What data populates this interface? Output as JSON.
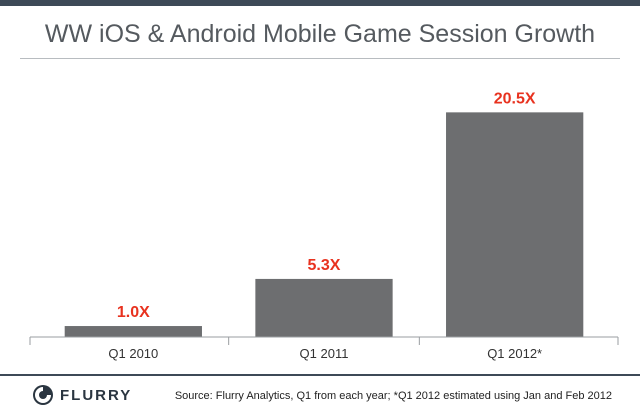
{
  "header": {
    "title": "WW iOS & Android Mobile Game Session Growth"
  },
  "chart_data": {
    "type": "bar",
    "title": "WW iOS & Android Mobile Game Session Growth",
    "categories": [
      "Q1 2010",
      "Q1 2011",
      "Q1 2012*"
    ],
    "values": [
      1.0,
      5.3,
      20.5
    ],
    "data_labels": [
      "1.0X",
      "5.3X",
      "20.5X"
    ],
    "xlabel": "",
    "ylabel": "",
    "ylim": [
      0,
      24
    ],
    "grid": false,
    "bar_color": "#6d6e70",
    "label_color": "#e8321f"
  },
  "footer": {
    "logo_text": "FLURRY",
    "source": "Source: Flurry Analytics, Q1 from each year; *Q1 2012 estimated using Jan and Feb 2012"
  },
  "colors": {
    "frame": "#3d4a57",
    "title": "#555a5f",
    "bar": "#6d6e70",
    "data_label": "#e8321f"
  }
}
